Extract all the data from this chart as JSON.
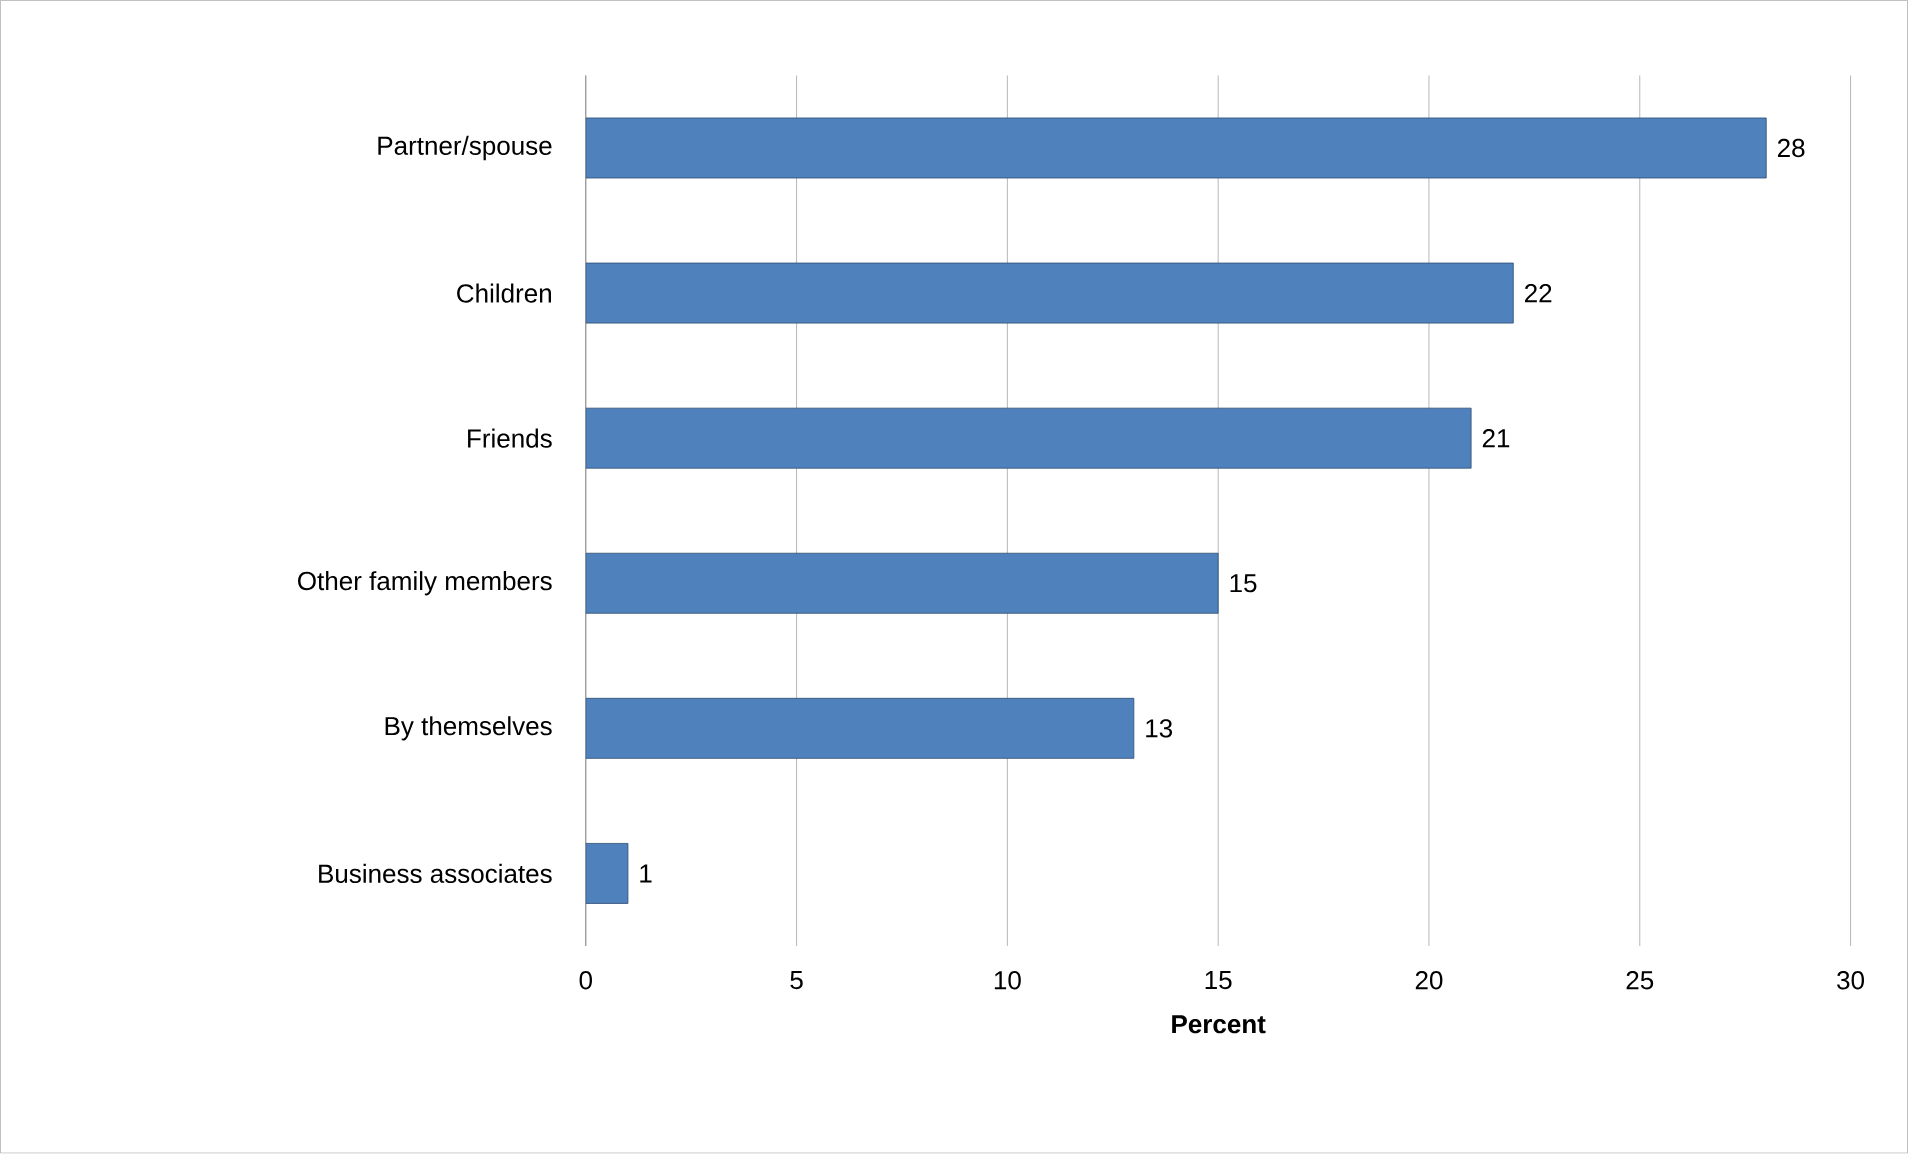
{
  "chart_data": {
    "type": "bar",
    "orientation": "horizontal",
    "categories": [
      "Partner/spouse",
      "Children",
      "Friends",
      "Other family members",
      "By themselves",
      "Business associates"
    ],
    "values": [
      28,
      22,
      21,
      15,
      13,
      1
    ],
    "color": "#4f81bd",
    "xlabel": "Percent",
    "xlim": [
      0,
      30
    ],
    "xticks": [
      0,
      5,
      10,
      15,
      20,
      25,
      30
    ],
    "grid": "x",
    "data_labels": true
  }
}
